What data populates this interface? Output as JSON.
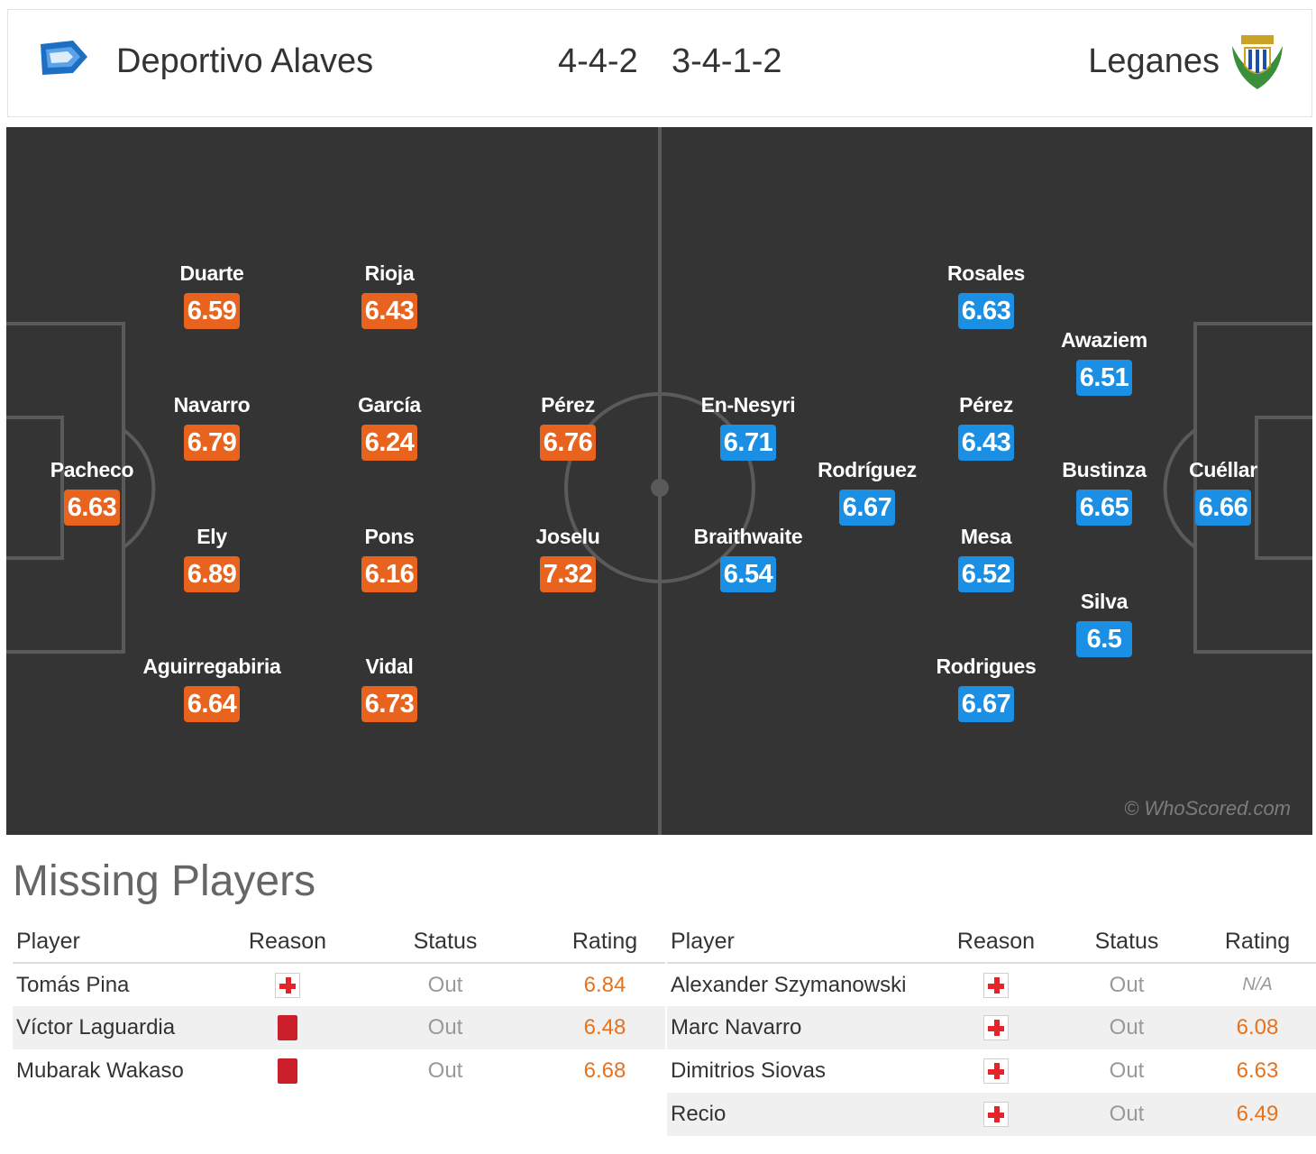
{
  "header": {
    "home_team": "Deportivo Alaves",
    "home_formation": "4-4-2",
    "away_formation": "3-4-1-2",
    "away_team": "Leganes"
  },
  "pitch": {
    "watermark": "© WhoScored.com",
    "home_color": "#e8641e",
    "away_color": "#1a8fe3",
    "home_players": [
      {
        "name": "Pacheco",
        "rating": "6.63"
      },
      {
        "name": "Duarte",
        "rating": "6.59"
      },
      {
        "name": "Navarro",
        "rating": "6.79"
      },
      {
        "name": "Ely",
        "rating": "6.89"
      },
      {
        "name": "Aguirregabiria",
        "rating": "6.64"
      },
      {
        "name": "Rioja",
        "rating": "6.43"
      },
      {
        "name": "García",
        "rating": "6.24"
      },
      {
        "name": "Pons",
        "rating": "6.16"
      },
      {
        "name": "Vidal",
        "rating": "6.73"
      },
      {
        "name": "Pérez",
        "rating": "6.76"
      },
      {
        "name": "Joselu",
        "rating": "7.32"
      }
    ],
    "away_players": [
      {
        "name": "En-Nesyri",
        "rating": "6.71"
      },
      {
        "name": "Braithwaite",
        "rating": "6.54"
      },
      {
        "name": "Rodríguez",
        "rating": "6.67"
      },
      {
        "name": "Rosales",
        "rating": "6.63"
      },
      {
        "name": "Pérez",
        "rating": "6.43"
      },
      {
        "name": "Mesa",
        "rating": "6.52"
      },
      {
        "name": "Rodrigues",
        "rating": "6.67"
      },
      {
        "name": "Awaziem",
        "rating": "6.51"
      },
      {
        "name": "Bustinza",
        "rating": "6.65"
      },
      {
        "name": "Silva",
        "rating": "6.5"
      },
      {
        "name": "Cuéllar",
        "rating": "6.66"
      }
    ]
  },
  "missing": {
    "title": "Missing Players",
    "columns": {
      "player": "Player",
      "reason": "Reason",
      "status": "Status",
      "rating": "Rating"
    },
    "home": [
      {
        "player": "Tomás Pina",
        "reason": "injury",
        "status": "Out",
        "rating": "6.84"
      },
      {
        "player": "Víctor Laguardia",
        "reason": "red-card",
        "status": "Out",
        "rating": "6.48"
      },
      {
        "player": "Mubarak Wakaso",
        "reason": "red-card",
        "status": "Out",
        "rating": "6.68"
      }
    ],
    "away": [
      {
        "player": "Alexander Szymanowski",
        "reason": "injury",
        "status": "Out",
        "rating": "N/A"
      },
      {
        "player": "Marc Navarro",
        "reason": "injury",
        "status": "Out",
        "rating": "6.08"
      },
      {
        "player": "Dimitrios Siovas",
        "reason": "injury",
        "status": "Out",
        "rating": "6.63"
      },
      {
        "player": "Recio",
        "reason": "injury",
        "status": "Out",
        "rating": "6.49"
      }
    ]
  }
}
